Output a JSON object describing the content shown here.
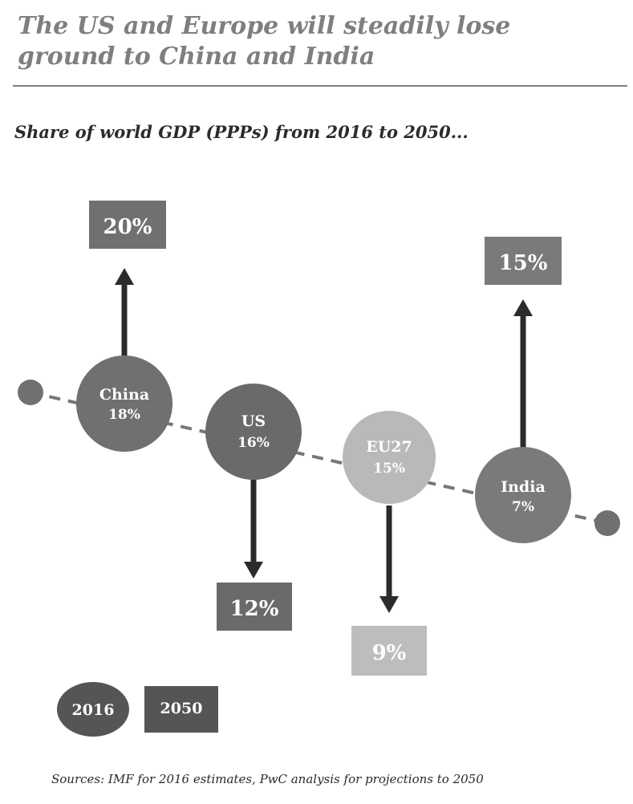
{
  "title": "The US and Europe will steadily lose ground to China and India",
  "subtitle": "Share of world GDP (PPPs) from 2016 to 2050...",
  "source": "Sources: IMF for 2016 estimates, PwC analysis for projections to 2050",
  "chart_data": {
    "type": "diagram",
    "unit": "% share of world GDP (PPPs)",
    "series_years": [
      "2016",
      "2050"
    ],
    "entities": [
      {
        "name": "China",
        "share_2016": 18,
        "share_2050": 20,
        "label_2016": "18%",
        "label_2050": "20%",
        "direction": "up",
        "circle_color": "#707070",
        "box_color": "#707070"
      },
      {
        "name": "US",
        "share_2016": 16,
        "share_2050": 12,
        "label_2016": "16%",
        "label_2050": "12%",
        "direction": "down",
        "circle_color": "#6a6a6a",
        "box_color": "#6a6a6a"
      },
      {
        "name": "EU27",
        "share_2016": 15,
        "share_2050": 9,
        "label_2016": "15%",
        "label_2050": "9%",
        "direction": "down",
        "circle_color": "#b9b9b9",
        "box_color": "#bdbdbd"
      },
      {
        "name": "India",
        "share_2016": 7,
        "share_2050": 15,
        "label_2016": "7%",
        "label_2050": "15%",
        "direction": "up",
        "circle_color": "#7a7a7a",
        "box_color": "#7a7a7a"
      }
    ],
    "legend": [
      {
        "label": "2016",
        "shape": "circle",
        "color": "#555555"
      },
      {
        "label": "2050",
        "shape": "box",
        "color": "#555555"
      }
    ]
  }
}
